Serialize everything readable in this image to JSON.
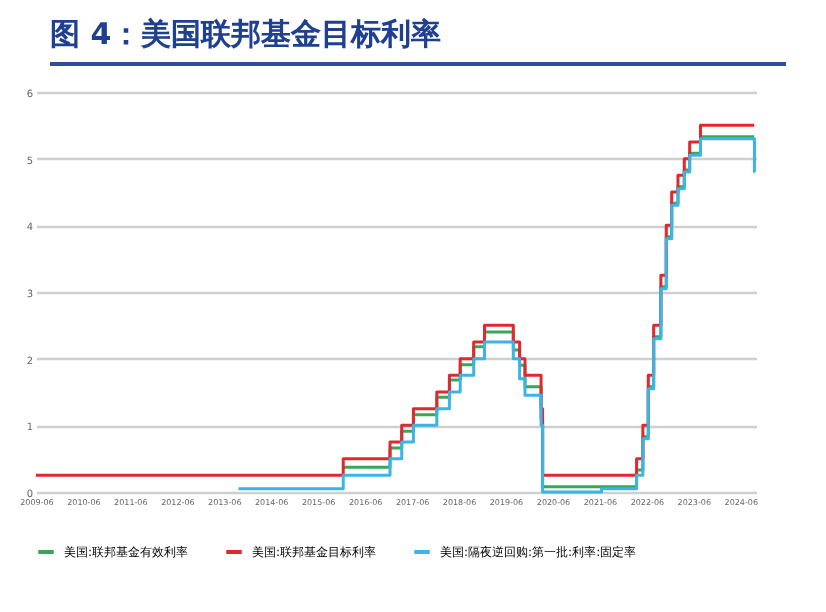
{
  "chart_data": {
    "type": "step",
    "title": "图 4：美国联邦基金目标利率",
    "xlim": [
      "2009-06",
      "2024-10"
    ],
    "xticks": [
      "2009-06",
      "2010-06",
      "2011-06",
      "2012-06",
      "2013-06",
      "2014-06",
      "2015-06",
      "2016-06",
      "2017-06",
      "2018-06",
      "2019-06",
      "2020-06",
      "2021-06",
      "2022-06",
      "2023-06",
      "2024-06"
    ],
    "ylim": [
      0,
      6
    ],
    "yticks": [
      0,
      1,
      2,
      3,
      4,
      5,
      6
    ],
    "grid": "y",
    "legend": "bottom",
    "line_style": "solid",
    "marker": "none",
    "series": [
      {
        "name": "美国:联邦基金有效利率",
        "color": "#3aa657",
        "x": [
          "2015-12-17",
          "2016-12-15",
          "2017-03-16",
          "2017-06-15",
          "2017-12-14",
          "2018-03-22",
          "2018-06-14",
          "2018-09-27",
          "2018-12-20",
          "2019-08-01",
          "2019-09-19",
          "2019-10-31",
          "2020-03-04",
          "2020-03-16",
          "2022-03-17",
          "2022-05-05",
          "2022-06-16",
          "2022-07-28",
          "2022-09-22",
          "2022-11-03",
          "2022-12-15",
          "2023-02-02",
          "2023-03-23",
          "2023-05-04",
          "2023-07-27",
          "2024-09-17"
        ],
        "values": [
          0.37,
          0.66,
          0.91,
          1.16,
          1.42,
          1.68,
          1.91,
          2.18,
          2.4,
          2.13,
          1.9,
          1.58,
          1.1,
          0.08,
          0.33,
          0.83,
          1.58,
          2.33,
          3.08,
          3.83,
          4.33,
          4.58,
          4.83,
          5.08,
          5.33,
          5.33
        ]
      },
      {
        "name": "美国:联邦基金目标利率",
        "color": "#e0282e",
        "x": [
          "2009-06-01",
          "2015-12-17",
          "2016-12-15",
          "2017-03-16",
          "2017-06-15",
          "2017-12-14",
          "2018-03-22",
          "2018-06-14",
          "2018-09-27",
          "2018-12-20",
          "2019-08-01",
          "2019-09-19",
          "2019-10-31",
          "2020-03-04",
          "2020-03-16",
          "2022-03-17",
          "2022-05-05",
          "2022-06-16",
          "2022-07-28",
          "2022-09-22",
          "2022-11-03",
          "2022-12-15",
          "2023-02-02",
          "2023-03-23",
          "2023-05-04",
          "2023-07-27",
          "2024-09-17"
        ],
        "values": [
          0.25,
          0.5,
          0.75,
          1.0,
          1.25,
          1.5,
          1.75,
          2.0,
          2.25,
          2.5,
          2.25,
          2.0,
          1.75,
          1.25,
          0.25,
          0.5,
          1.0,
          1.75,
          2.5,
          3.25,
          4.0,
          4.5,
          4.75,
          5.0,
          5.25,
          5.5,
          5.5
        ]
      },
      {
        "name": "美国:隔夜逆回购:第一批:利率:固定率",
        "color": "#3cb4e6",
        "x": [
          "2013-09-23",
          "2015-12-17",
          "2016-12-15",
          "2017-03-16",
          "2017-06-15",
          "2017-12-14",
          "2018-03-22",
          "2018-06-14",
          "2018-09-27",
          "2018-12-20",
          "2019-08-01",
          "2019-09-19",
          "2019-10-31",
          "2020-03-04",
          "2020-03-16",
          "2021-06-17",
          "2022-03-17",
          "2022-05-05",
          "2022-06-16",
          "2022-07-28",
          "2022-09-22",
          "2022-11-03",
          "2022-12-15",
          "2023-02-02",
          "2023-03-23",
          "2023-05-04",
          "2023-07-27",
          "2024-09-19",
          "2024-09-20"
        ],
        "values": [
          0.05,
          0.25,
          0.5,
          0.75,
          1.0,
          1.25,
          1.5,
          1.75,
          2.0,
          2.25,
          2.0,
          1.7,
          1.45,
          1.0,
          0.0,
          0.05,
          0.25,
          0.8,
          1.55,
          2.3,
          3.05,
          3.8,
          4.3,
          4.55,
          4.8,
          5.05,
          5.3,
          4.8,
          4.8
        ]
      }
    ]
  }
}
